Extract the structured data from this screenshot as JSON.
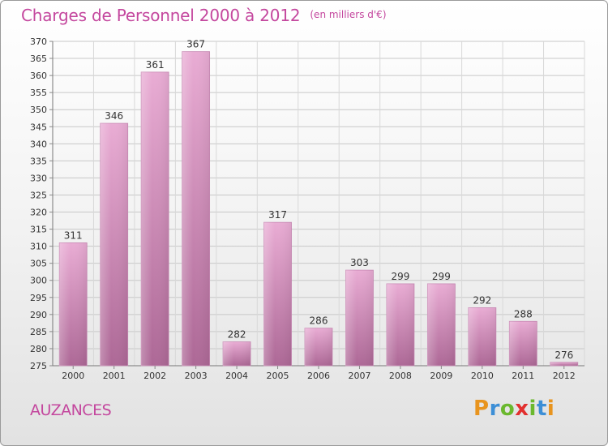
{
  "title": "Charges de Personnel 2000 à 2012",
  "subtitle": "(en milliers d'€)",
  "location": "AUZANCES",
  "logo": {
    "text": "Proxiti",
    "colors": [
      "#e8941e",
      "#3d8fd6",
      "#6bb82e",
      "#e2302f",
      "#6bb82e",
      "#3d8fd6",
      "#e8941e"
    ]
  },
  "colors": {
    "title": "#c4479e",
    "bar_light": "#e7aad2",
    "bar_dark": "#b06c99"
  },
  "chart_data": {
    "type": "bar",
    "title": "Charges de Personnel 2000 à 2012",
    "subtitle": "(en milliers d'€)",
    "categories": [
      "2000",
      "2001",
      "2002",
      "2003",
      "2004",
      "2005",
      "2006",
      "2007",
      "2008",
      "2009",
      "2010",
      "2011",
      "2012"
    ],
    "values": [
      311,
      346,
      361,
      367,
      282,
      317,
      286,
      303,
      299,
      299,
      292,
      288,
      276
    ],
    "ylim": [
      275,
      370
    ],
    "yticks": [
      275,
      280,
      285,
      290,
      295,
      300,
      305,
      310,
      315,
      320,
      325,
      330,
      335,
      340,
      345,
      350,
      355,
      360,
      365,
      370
    ],
    "grid": true,
    "data_labels": true
  }
}
